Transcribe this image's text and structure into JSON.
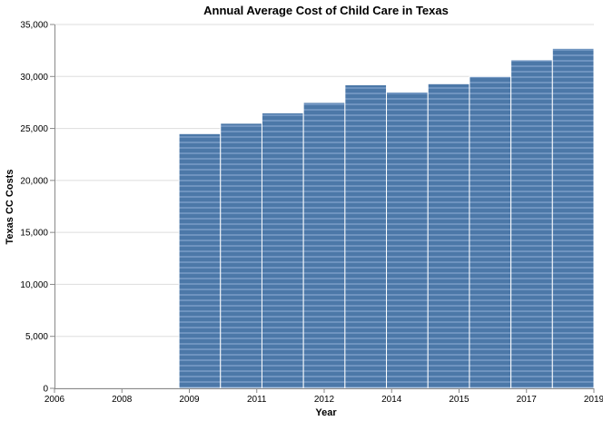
{
  "chart_data": {
    "type": "bar",
    "title": "Annual Average Cost of Child Care in Texas",
    "xlabel": "Year",
    "ylabel": "Texas CC Costs",
    "x_ticks": [
      "2006",
      "2008",
      "2009",
      "2011",
      "2012",
      "2014",
      "2015",
      "2017",
      "2019"
    ],
    "y_ticks": [
      0,
      5000,
      10000,
      15000,
      20000,
      25000,
      30000,
      35000
    ],
    "y_tick_labels": [
      "0",
      "5,000",
      "10,000",
      "15,000",
      "20,000",
      "25,000",
      "30,000",
      "35,000"
    ],
    "ylim": [
      0,
      35000
    ],
    "xlim": [
      "2006",
      "2019"
    ],
    "categories": [
      "2009",
      "2010",
      "2011",
      "2012",
      "2013",
      "2014",
      "2015",
      "2016",
      "2017",
      "2018"
    ],
    "values": [
      24500,
      25500,
      26500,
      27500,
      29200,
      28500,
      29300,
      30000,
      31600,
      32700
    ],
    "grid": true,
    "colors": {
      "bar": "#4c78a8",
      "bar_stripe": "#6f94c0",
      "grid": "#dddddd",
      "axis": "#888888"
    }
  }
}
